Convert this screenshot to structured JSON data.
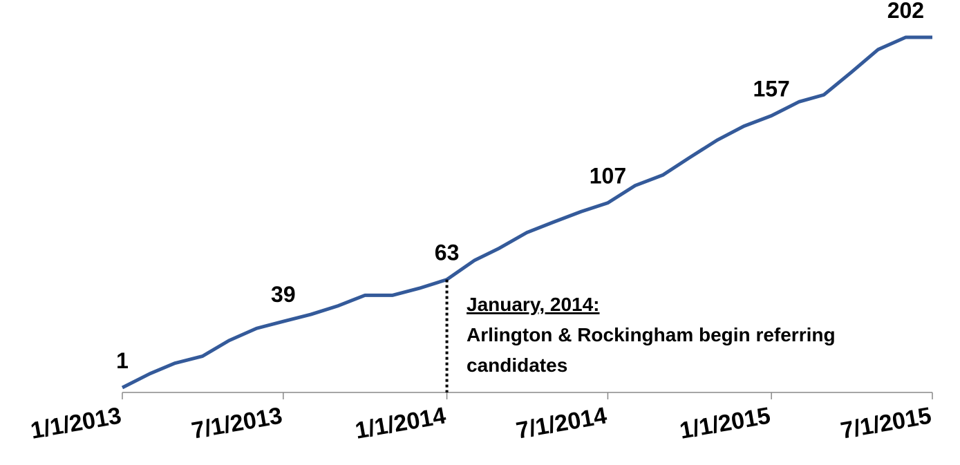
{
  "chart_data": {
    "type": "line",
    "x": [
      "2013-01-01",
      "2013-02-01",
      "2013-03-01",
      "2013-04-01",
      "2013-05-01",
      "2013-06-01",
      "2013-07-01",
      "2013-08-01",
      "2013-09-01",
      "2013-10-01",
      "2013-11-01",
      "2013-12-01",
      "2014-01-01",
      "2014-02-01",
      "2014-03-01",
      "2014-04-01",
      "2014-05-01",
      "2014-06-01",
      "2014-07-01",
      "2014-08-01",
      "2014-09-01",
      "2014-10-01",
      "2014-11-01",
      "2014-12-01",
      "2015-01-01",
      "2015-02-01",
      "2015-03-01",
      "2015-04-01",
      "2015-05-01",
      "2015-06-01",
      "2015-07-01"
    ],
    "series": [
      {
        "color": "#345a9a",
        "values": [
          1,
          9,
          15,
          19,
          28,
          35,
          39,
          43,
          48,
          54,
          54,
          58,
          63,
          74,
          81,
          90,
          96,
          102,
          107,
          117,
          123,
          133,
          143,
          151,
          157,
          165,
          169,
          182,
          195,
          202,
          202
        ],
        "value_labels": [
          "1",
          null,
          null,
          null,
          null,
          null,
          "39",
          null,
          null,
          null,
          null,
          null,
          "63",
          null,
          null,
          null,
          null,
          null,
          "107",
          null,
          null,
          null,
          null,
          null,
          "157",
          null,
          null,
          null,
          null,
          "202",
          null
        ]
      }
    ],
    "xlim": [
      "2013-01-01",
      "2015-07-01"
    ],
    "xticks": [
      {
        "value": "2013-01-01",
        "label": "1/1/2013"
      },
      {
        "value": "2013-07-01",
        "label": "7/1/2013"
      },
      {
        "value": "2014-01-01",
        "label": "1/1/2014"
      },
      {
        "value": "2014-07-01",
        "label": "7/1/2014"
      },
      {
        "value": "2015-01-01",
        "label": "1/1/2015"
      },
      {
        "value": "2015-07-01",
        "label": "7/1/2015"
      }
    ],
    "ylim": [
      1,
      202
    ],
    "annotation": {
      "x": "2014-01-01",
      "title": "January, 2014:",
      "lines": [
        "Arlington & Rockingham begin referring",
        "candidates"
      ]
    }
  }
}
